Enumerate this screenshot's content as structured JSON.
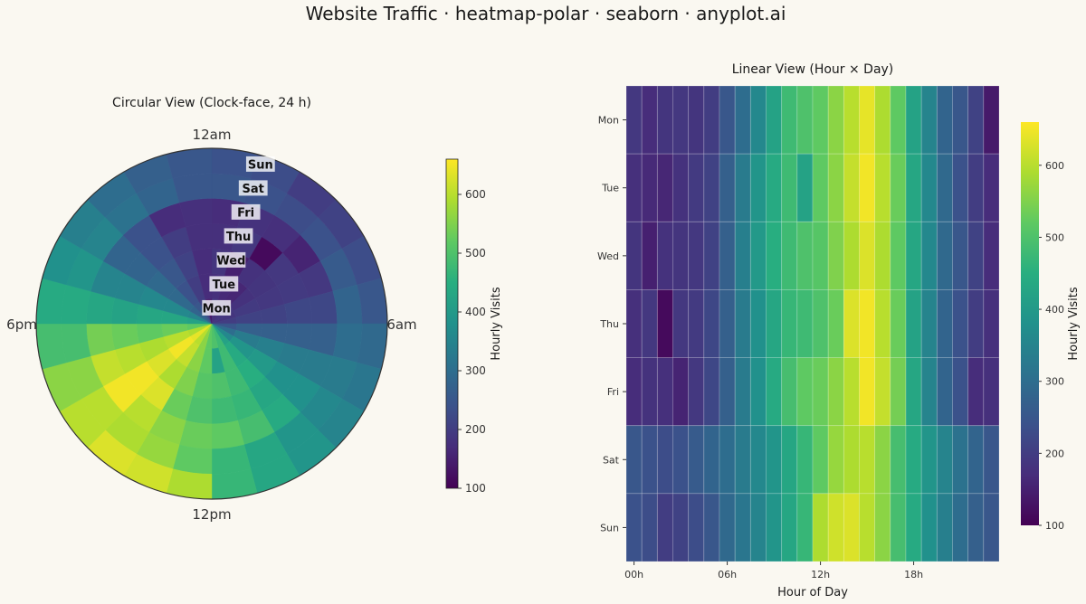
{
  "title": "Website Traffic · heatmap-polar · seaborn · anyplot.ai",
  "chart_data": [
    {
      "type": "heatmap",
      "projection": "polar",
      "title": "Circular View (Clock-face, 24 h)",
      "days": [
        "Mon",
        "Tue",
        "Wed",
        "Thu",
        "Fri",
        "Sat",
        "Sun"
      ],
      "hours": [
        0,
        1,
        2,
        3,
        4,
        5,
        6,
        7,
        8,
        9,
        10,
        11,
        12,
        13,
        14,
        15,
        16,
        17,
        18,
        19,
        20,
        21,
        22,
        23
      ],
      "clock_labels": [
        "12am",
        "6am",
        "12pm",
        "6pm"
      ],
      "colorbar": {
        "label": "Hourly Visits",
        "ticks": [
          100,
          200,
          300,
          400,
          500,
          600
        ],
        "range": [
          100,
          660
        ],
        "colormap": "viridis"
      },
      "values": [
        [
          190,
          170,
          185,
          190,
          185,
          200,
          250,
          300,
          360,
          420,
          480,
          500,
          520,
          560,
          600,
          640,
          590,
          520,
          420,
          350,
          280,
          250,
          210,
          140
        ],
        [
          175,
          165,
          160,
          180,
          195,
          210,
          270,
          330,
          390,
          440,
          480,
          420,
          520,
          560,
          610,
          650,
          600,
          530,
          430,
          360,
          290,
          240,
          200,
          170
        ],
        [
          185,
          150,
          180,
          185,
          190,
          210,
          270,
          340,
          400,
          450,
          480,
          500,
          510,
          550,
          590,
          630,
          590,
          520,
          430,
          360,
          290,
          250,
          210,
          170
        ],
        [
          175,
          190,
          115,
          190,
          195,
          220,
          270,
          330,
          380,
          430,
          470,
          480,
          500,
          530,
          630,
          650,
          600,
          530,
          420,
          350,
          280,
          240,
          200,
          175
        ],
        [
          170,
          180,
          175,
          155,
          190,
          220,
          270,
          330,
          380,
          440,
          490,
          520,
          530,
          560,
          600,
          650,
          610,
          540,
          430,
          350,
          280,
          240,
          170,
          175
        ],
        [
          250,
          240,
          230,
          240,
          260,
          280,
          300,
          330,
          360,
          390,
          430,
          470,
          520,
          570,
          590,
          600,
          560,
          490,
          440,
          390,
          350,
          310,
          280,
          250
        ],
        [
          240,
          230,
          200,
          210,
          230,
          250,
          290,
          320,
          350,
          390,
          430,
          470,
          590,
          620,
          630,
          600,
          560,
          490,
          440,
          380,
          340,
          300,
          270,
          250
        ]
      ]
    },
    {
      "type": "heatmap",
      "title": "Linear View (Hour × Day)",
      "xlabel": "Hour of Day",
      "xticks": [
        "00h",
        "06h",
        "12h",
        "18h"
      ],
      "yticks": [
        "Mon",
        "Tue",
        "Wed",
        "Thu",
        "Fri",
        "Sat",
        "Sun"
      ],
      "colorbar": {
        "label": "Hourly Visits",
        "ticks": [
          100,
          200,
          300,
          400,
          500,
          600
        ],
        "range": [
          100,
          660
        ],
        "colormap": "viridis"
      }
    }
  ]
}
